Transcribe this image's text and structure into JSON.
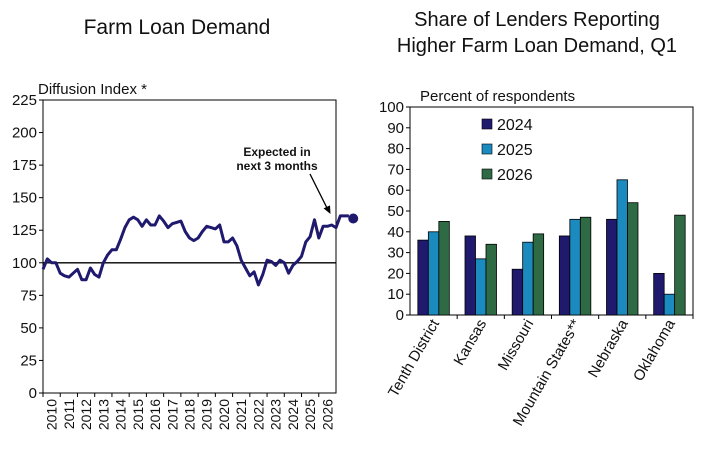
{
  "chart_data": [
    {
      "type": "line",
      "title": "Farm Loan Demand",
      "ylabel": "Diffusion Index *",
      "xlabel": "",
      "ylim": [
        0,
        225
      ],
      "yticks": [
        0,
        25,
        50,
        75,
        100,
        125,
        150,
        175,
        200,
        225
      ],
      "x_tick_labels": [
        "2010",
        "2011",
        "2012",
        "2013",
        "2014",
        "2015",
        "2016",
        "2017",
        "2018",
        "2019",
        "2020",
        "2021",
        "2022",
        "2023",
        "2024",
        "2025",
        "2026"
      ],
      "x_start_year": 2010,
      "reference_line": 100,
      "series": [
        {
          "values": [
            95,
            103,
            100,
            100,
            92,
            90,
            89,
            92,
            95,
            87,
            87,
            96,
            91,
            89,
            100,
            106,
            110,
            110,
            118,
            127,
            133,
            135,
            133,
            128,
            133,
            129,
            129,
            136,
            132,
            127,
            130,
            131,
            132,
            124,
            119,
            117,
            119,
            124,
            128,
            127,
            126,
            129,
            116,
            116,
            119,
            113,
            102,
            96,
            90,
            93,
            83,
            91,
            102,
            101,
            98,
            102,
            100,
            92,
            98,
            101,
            105,
            116,
            120,
            133,
            119,
            128,
            128,
            129,
            127,
            136,
            136,
            136
          ]
        }
      ],
      "expected": {
        "value": 134,
        "label_line1": "Expected in",
        "label_line2": "next 3 months"
      },
      "colors": {
        "line": "#1f1a6e",
        "marker": "#1f1a6e"
      }
    },
    {
      "type": "bar",
      "title_line1": "Share of Lenders Reporting",
      "title_line2": "Higher Farm Loan Demand, Q1",
      "ylabel": "Percent of respondents",
      "xlabel": "",
      "ylim": [
        0,
        100
      ],
      "yticks": [
        0,
        10,
        20,
        30,
        40,
        50,
        60,
        70,
        80,
        90,
        100
      ],
      "categories": [
        "Tenth District",
        "Kansas",
        "Missouri",
        "Mountain States**",
        "Nebraska",
        "Oklahoma"
      ],
      "series": [
        {
          "name": "2024",
          "color": "#1f1a6e",
          "values": [
            36,
            38,
            22,
            38,
            46,
            20
          ]
        },
        {
          "name": "2025",
          "color": "#1b8bbf",
          "values": [
            40,
            27,
            35,
            46,
            65,
            10
          ]
        },
        {
          "name": "2026",
          "color": "#2e6b45",
          "values": [
            45,
            34,
            39,
            47,
            54,
            48
          ]
        }
      ],
      "legend_position": "top-left"
    }
  ]
}
